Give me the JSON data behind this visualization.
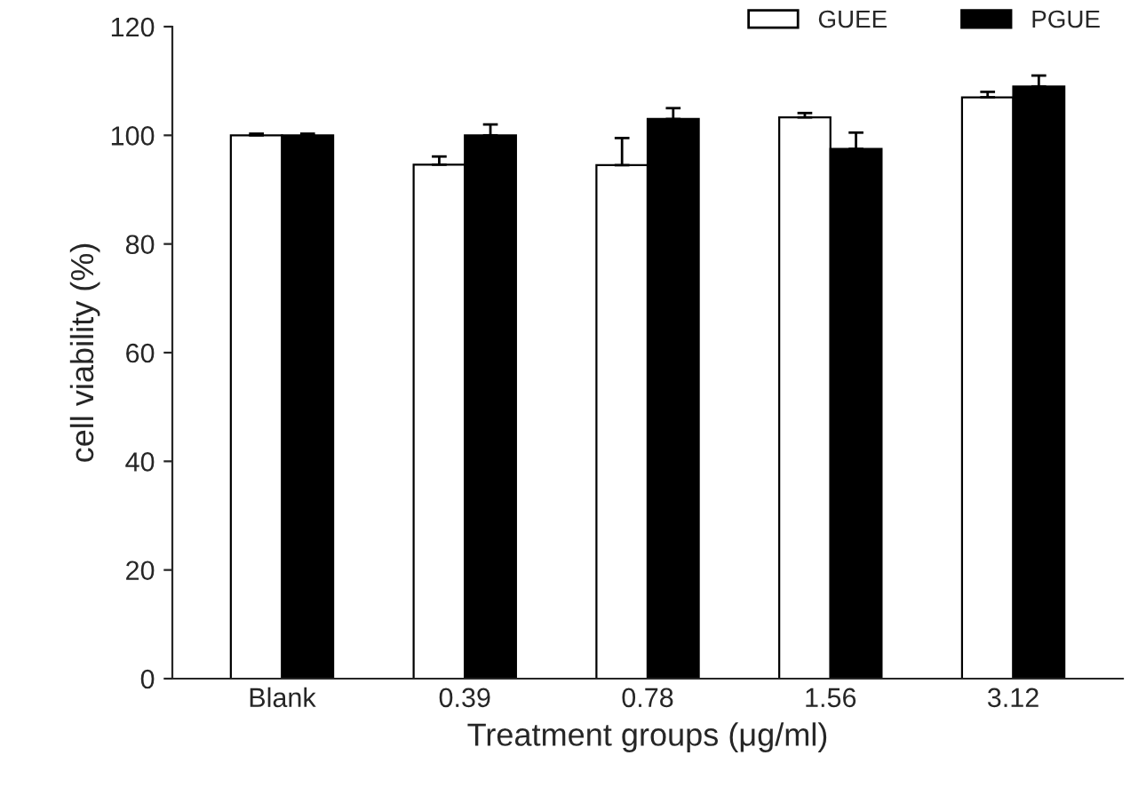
{
  "chart_data": {
    "type": "bar",
    "xlabel": "Treatment groups (μg/ml)",
    "ylabel": "cell viability (%)",
    "categories": [
      "Blank",
      "0.39",
      "0.78",
      "1.56",
      "3.12"
    ],
    "series": [
      {
        "name": "GUEE",
        "color": "#ffffff",
        "values": [
          100,
          94.6,
          94.5,
          103.3,
          107
        ],
        "errors": [
          0.3,
          1.5,
          5,
          0.8,
          1
        ]
      },
      {
        "name": "PGUE",
        "color": "#000000",
        "values": [
          100,
          100,
          103,
          97.5,
          109
        ],
        "errors": [
          0.3,
          2,
          2,
          3,
          2
        ]
      }
    ],
    "ylim": [
      0,
      120
    ],
    "yticks": [
      0,
      20,
      40,
      60,
      80,
      100,
      120
    ],
    "grid": false,
    "legend": "top right"
  }
}
